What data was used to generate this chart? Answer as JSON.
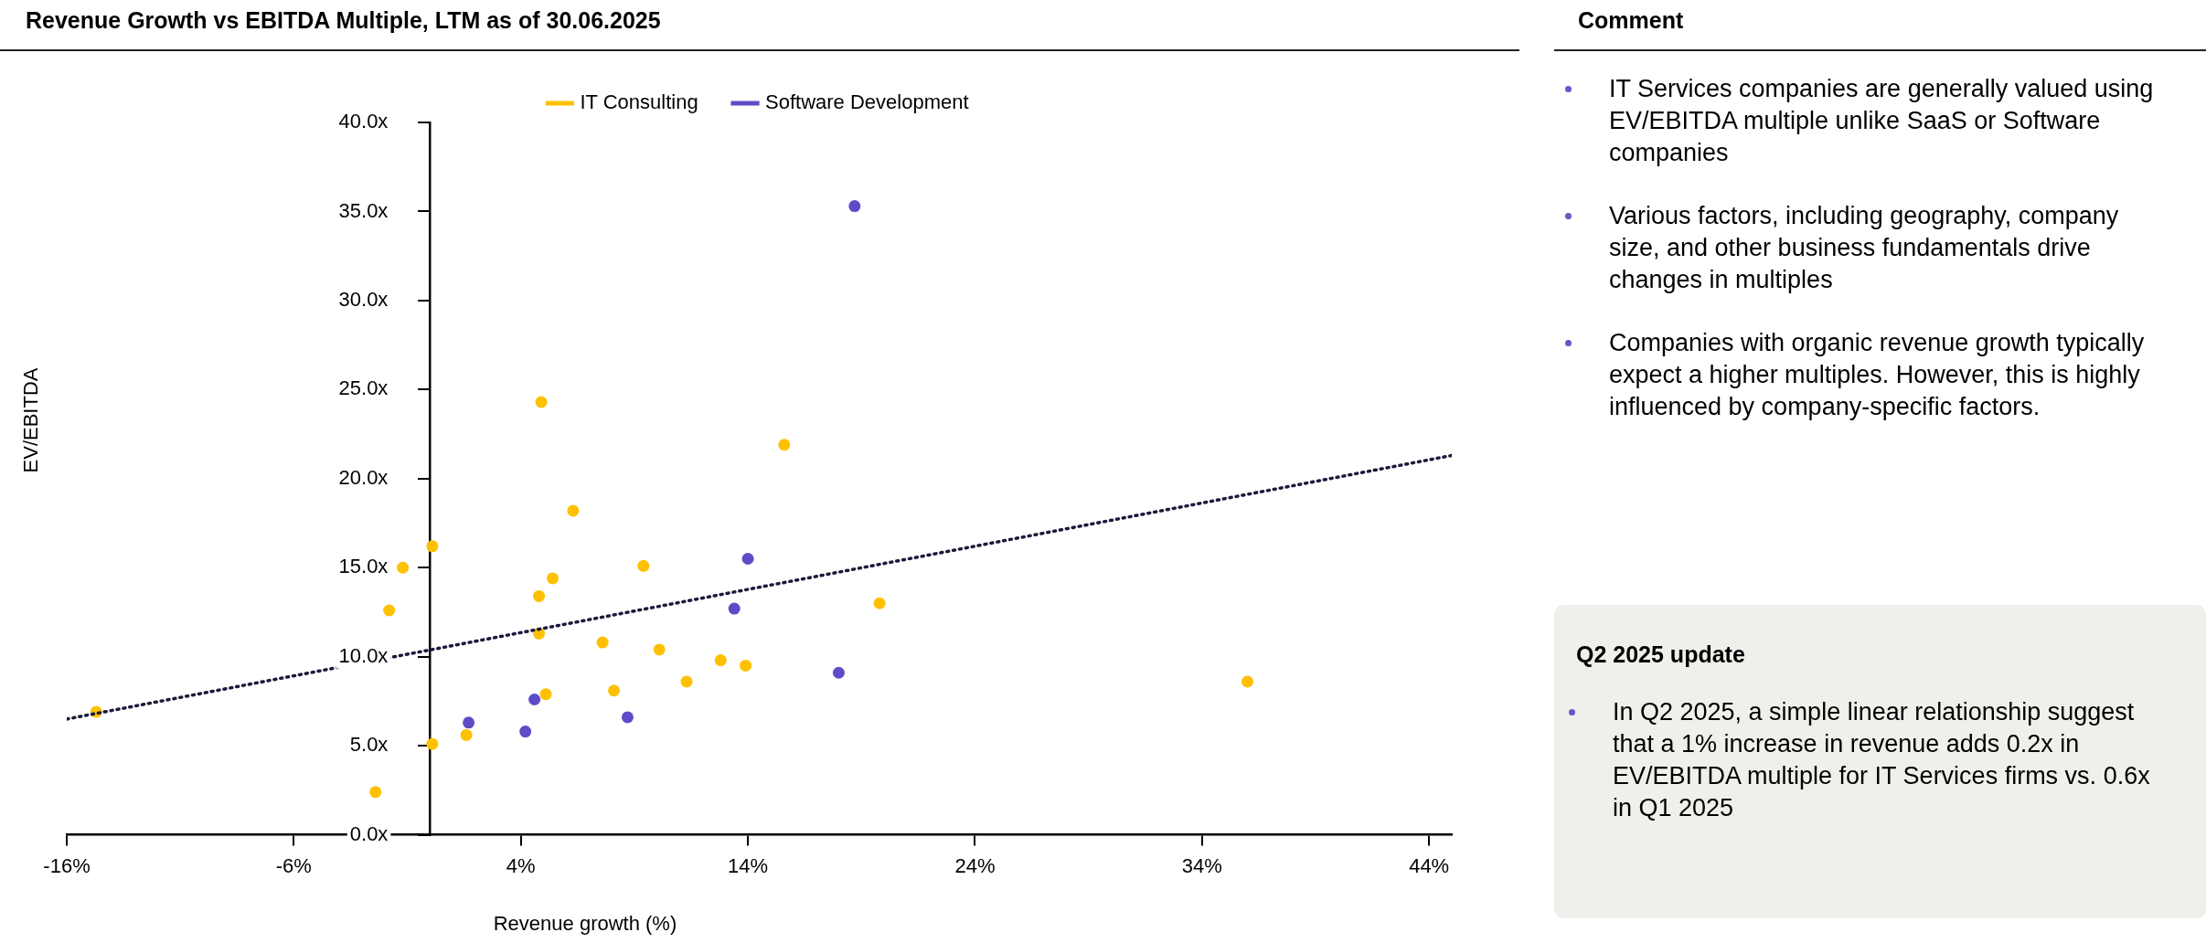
{
  "chart_data": {
    "type": "scatter",
    "title": "Revenue Growth vs EBITDA Multiple, LTM as of 30.06.2025",
    "xlabel": "Revenue growth (%)",
    "ylabel": "EV/EBITDA",
    "xlim": [
      -16,
      45
    ],
    "xticks": [
      {
        "value": -16,
        "label": "-16%"
      },
      {
        "value": -6,
        "label": "-6%"
      },
      {
        "value": 4,
        "label": "4%"
      },
      {
        "value": 14,
        "label": "14%"
      },
      {
        "value": 24,
        "label": "24%"
      },
      {
        "value": 34,
        "label": "34%"
      },
      {
        "value": 44,
        "label": "44%"
      }
    ],
    "ylim": [
      0,
      40
    ],
    "yticks": [
      {
        "value": 0,
        "label": "0.0x"
      },
      {
        "value": 5,
        "label": "5.0x"
      },
      {
        "value": 10,
        "label": "10.0x"
      },
      {
        "value": 15,
        "label": "15.0x"
      },
      {
        "value": 20,
        "label": "20.0x"
      },
      {
        "value": 25,
        "label": "25.0x"
      },
      {
        "value": 30,
        "label": "30.0x"
      },
      {
        "value": 35,
        "label": "35.0x"
      },
      {
        "value": 40,
        "label": "40.0x"
      }
    ],
    "grid": false,
    "legend": "top",
    "marker": "circle",
    "series": [
      {
        "name": "IT Consulting",
        "color": "#ffc000",
        "x": [
          -14.7,
          0.1,
          -1.2,
          -1.8,
          -2.4,
          0.1,
          1.6,
          4.8,
          5.4,
          4.8,
          5.1,
          6.3,
          7.6,
          8.1,
          9.4,
          10.1,
          11.3,
          12.8,
          13.9,
          4.9,
          15.6,
          19.8,
          36.0
        ],
        "values": [
          6.9,
          16.2,
          15.0,
          12.6,
          2.4,
          5.1,
          5.6,
          13.4,
          14.4,
          11.3,
          7.9,
          18.2,
          10.8,
          8.1,
          15.1,
          10.4,
          8.6,
          9.8,
          9.5,
          24.3,
          21.9,
          13.0,
          8.6
        ]
      },
      {
        "name": "Software Development",
        "color": "#5f4bc8",
        "x": [
          1.7,
          4.2,
          4.6,
          8.7,
          13.4,
          14.0,
          18.0,
          18.7
        ],
        "values": [
          6.3,
          5.8,
          7.6,
          6.6,
          12.7,
          15.5,
          9.1,
          35.3
        ]
      },
      {
        "type": "line",
        "color": "#1a1a3a",
        "line_style": "dotted",
        "marker": "none",
        "x": [
          -16,
          45
        ],
        "values": [
          6.5,
          21.3
        ]
      }
    ],
    "annotations": [
      "Comment",
      "IT Services companies are generally valued using EV/EBITDA multiple unlike SaaS or Software companies",
      "Various factors, including geography, company size, and other business fundamentals drive changes in multiples",
      "Companies with organic revenue growth typically expect a higher multiples. However, this is highly influenced by company-specific factors.",
      "Q2 2025 update",
      "In Q2 2025, a simple linear relationship suggest that a 1% increase in revenue adds 0.2x in EV/EBITDA multiple for IT Services firms vs. 0.6x in Q1 2025"
    ]
  }
}
